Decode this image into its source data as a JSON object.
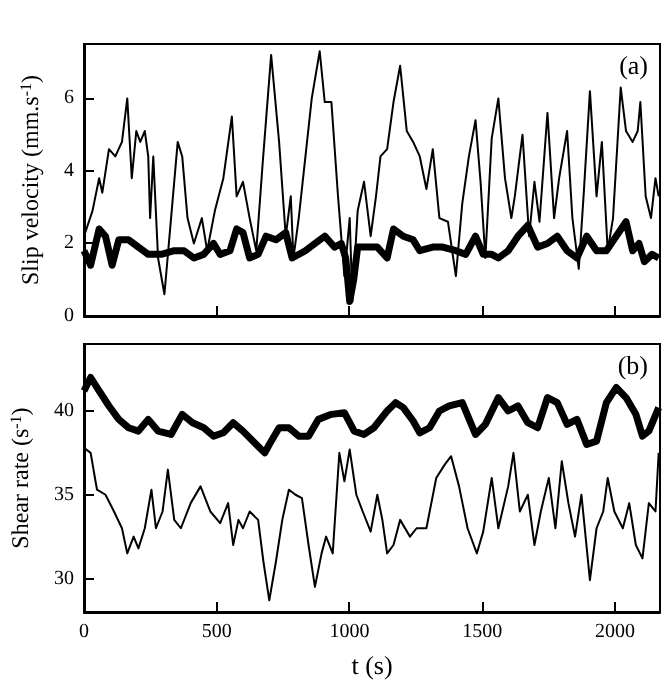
{
  "chart_data": [
    {
      "type": "line",
      "ylabel": "Slip velocity (mm.s$^{-1}$)",
      "annotations": [
        "(a)"
      ],
      "xlim": [
        0,
        2170
      ],
      "xticks": [
        0,
        500,
        1000,
        1500,
        2000
      ],
      "ylim": [
        0,
        7.5
      ],
      "yticks": [
        0,
        2,
        4,
        6
      ],
      "tick_labels": "y",
      "grid": false,
      "marker": "none",
      "line_style": "solid",
      "series": [
        {
          "color": "#000000",
          "x": [
            0,
            32,
            57,
            69,
            94,
            118,
            143,
            163,
            180,
            197,
            212,
            229,
            242,
            249,
            261,
            279,
            303,
            328,
            353,
            370,
            390,
            414,
            444,
            464,
            493,
            525,
            557,
            575,
            599,
            624,
            649,
            673,
            705,
            735,
            760,
            779,
            789,
            809,
            858,
            888,
            907,
            932,
            957,
            981,
            1001,
            1011,
            1031,
            1055,
            1080,
            1100,
            1117,
            1142,
            1166,
            1191,
            1216,
            1240,
            1265,
            1290,
            1314,
            1339,
            1371,
            1401,
            1425,
            1450,
            1475,
            1494,
            1512,
            1536,
            1561,
            1586,
            1610,
            1623,
            1652,
            1677,
            1697,
            1716,
            1746,
            1771,
            1790,
            1820,
            1840,
            1864,
            1882,
            1906,
            1931,
            1951,
            1973,
            1993,
            2022,
            2042,
            2067,
            2086,
            2096,
            2116,
            2136,
            2153,
            2165
          ],
          "values": [
            2.2,
            2.9,
            3.8,
            3.4,
            4.6,
            4.4,
            4.8,
            6.0,
            3.8,
            5.1,
            4.8,
            5.1,
            4.4,
            2.7,
            4.4,
            1.6,
            0.6,
            2.7,
            4.8,
            4.4,
            2.7,
            2.0,
            2.7,
            1.8,
            2.9,
            3.8,
            5.5,
            3.3,
            3.7,
            2.7,
            1.8,
            4.2,
            7.2,
            4.8,
            2.2,
            3.3,
            1.6,
            2.7,
            6.0,
            7.3,
            5.9,
            5.9,
            3.3,
            1.1,
            2.7,
            0.4,
            2.9,
            3.7,
            2.2,
            3.3,
            4.4,
            4.6,
            5.9,
            6.9,
            5.1,
            4.8,
            4.4,
            3.5,
            4.6,
            2.7,
            2.6,
            1.1,
            3.1,
            4.4,
            5.4,
            3.7,
            1.6,
            4.9,
            6.0,
            3.8,
            2.7,
            3.3,
            5.0,
            2.2,
            3.7,
            2.6,
            5.6,
            2.7,
            3.8,
            5.1,
            2.7,
            1.3,
            3.3,
            6.2,
            3.3,
            4.8,
            1.8,
            2.7,
            6.3,
            5.1,
            4.8,
            5.1,
            5.9,
            3.3,
            2.7,
            3.8,
            3.3
          ]
        },
        {
          "color": "#000000",
          "x": [
            0,
            25,
            57,
            81,
            106,
            131,
            168,
            205,
            242,
            291,
            340,
            377,
            414,
            451,
            488,
            513,
            550,
            575,
            599,
            624,
            656,
            686,
            723,
            760,
            784,
            834,
            870,
            907,
            944,
            969,
            986,
            1001,
            1016,
            1031,
            1068,
            1105,
            1142,
            1166,
            1203,
            1240,
            1265,
            1314,
            1351,
            1401,
            1438,
            1475,
            1504,
            1536,
            1561,
            1598,
            1635,
            1672,
            1709,
            1746,
            1783,
            1820,
            1857,
            1894,
            1931,
            1968,
            2005,
            2042,
            2067,
            2091,
            2111,
            2140,
            2165
          ],
          "values": [
            1.8,
            1.4,
            2.4,
            2.2,
            1.4,
            2.1,
            2.1,
            1.9,
            1.7,
            1.7,
            1.8,
            1.8,
            1.6,
            1.7,
            2.0,
            1.7,
            1.8,
            2.4,
            2.3,
            1.6,
            1.7,
            2.2,
            2.1,
            2.3,
            1.6,
            1.8,
            2.0,
            2.2,
            1.9,
            2.0,
            1.6,
            0.4,
            1.0,
            1.9,
            1.9,
            1.9,
            1.6,
            2.4,
            2.2,
            2.1,
            1.8,
            1.9,
            1.9,
            1.8,
            1.7,
            2.2,
            1.7,
            1.7,
            1.6,
            1.8,
            2.2,
            2.5,
            1.9,
            2.0,
            2.2,
            1.8,
            1.6,
            2.2,
            1.8,
            1.8,
            2.2,
            2.6,
            1.8,
            2.0,
            1.5,
            1.7,
            1.6
          ]
        }
      ]
    },
    {
      "type": "line",
      "xlabel": "t (s)",
      "ylabel": "Shear rate (s$^{-1}$)",
      "annotations": [
        "(b)"
      ],
      "xlim": [
        0,
        2170
      ],
      "xticks": [
        0,
        500,
        1000,
        1500,
        2000
      ],
      "ylim": [
        28,
        44
      ],
      "yticks": [
        30,
        35,
        40
      ],
      "grid": false,
      "marker": "none",
      "line_style": "solid",
      "series": [
        {
          "color": "#000000",
          "x": [
            0,
            25,
            49,
            81,
            113,
            143,
            163,
            187,
            205,
            229,
            254,
            271,
            296,
            316,
            340,
            365,
            402,
            439,
            476,
            513,
            543,
            562,
            582,
            599,
            624,
            656,
            676,
            698,
            723,
            747,
            772,
            797,
            821,
            846,
            870,
            895,
            912,
            937,
            962,
            981,
            1001,
            1026,
            1050,
            1080,
            1105,
            1124,
            1142,
            1166,
            1191,
            1228,
            1253,
            1290,
            1327,
            1359,
            1383,
            1413,
            1445,
            1480,
            1504,
            1536,
            1561,
            1598,
            1618,
            1642,
            1672,
            1697,
            1721,
            1751,
            1776,
            1800,
            1825,
            1850,
            1874,
            1906,
            1931,
            1956,
            1973,
            1998,
            2030,
            2054,
            2079,
            2104,
            2128,
            2153,
            2165
          ],
          "values": [
            37.8,
            37.5,
            35.3,
            35.0,
            34.0,
            33.0,
            31.5,
            32.5,
            31.8,
            33.0,
            35.3,
            33.0,
            34.0,
            36.5,
            33.5,
            33.0,
            34.5,
            35.5,
            34.0,
            33.3,
            34.5,
            32.0,
            33.5,
            33.0,
            34.0,
            33.5,
            31.0,
            28.7,
            31.0,
            33.5,
            35.3,
            35.0,
            34.8,
            32.0,
            29.5,
            31.5,
            32.5,
            31.5,
            37.5,
            35.8,
            37.7,
            35.0,
            34.0,
            32.8,
            35.0,
            33.5,
            31.5,
            32.0,
            33.5,
            32.5,
            33.0,
            33.0,
            36.0,
            36.8,
            37.3,
            35.5,
            33.0,
            31.5,
            32.8,
            36.0,
            33.0,
            35.5,
            37.5,
            34.0,
            35.0,
            32.0,
            34.0,
            36.0,
            33.0,
            37.0,
            34.5,
            32.5,
            35.0,
            29.9,
            33.0,
            34.0,
            36.0,
            34.0,
            33.0,
            34.5,
            32.0,
            31.2,
            34.5,
            34.0,
            37.5
          ]
        },
        {
          "color": "#000000",
          "x": [
            0,
            25,
            57,
            94,
            131,
            168,
            205,
            242,
            279,
            328,
            370,
            409,
            451,
            488,
            525,
            562,
            599,
            649,
            681,
            698,
            735,
            772,
            809,
            846,
            883,
            932,
            981,
            1018,
            1055,
            1092,
            1142,
            1174,
            1203,
            1240,
            1265,
            1302,
            1339,
            1376,
            1425,
            1475,
            1512,
            1561,
            1598,
            1635,
            1672,
            1709,
            1746,
            1783,
            1820,
            1857,
            1894,
            1931,
            1968,
            2005,
            2042,
            2079,
            2104,
            2128,
            2165
          ],
          "values": [
            41.2,
            42.0,
            41.2,
            40.3,
            39.5,
            39.0,
            38.8,
            39.5,
            38.8,
            38.6,
            39.8,
            39.3,
            39.0,
            38.5,
            38.7,
            39.3,
            38.8,
            38.0,
            37.5,
            38.0,
            39.0,
            39.0,
            38.5,
            38.5,
            39.5,
            39.8,
            39.9,
            38.8,
            38.6,
            39.0,
            40.0,
            40.5,
            40.2,
            39.4,
            38.7,
            39.0,
            40.0,
            40.3,
            40.5,
            38.6,
            39.2,
            40.8,
            40.0,
            40.3,
            39.3,
            39.0,
            40.8,
            40.5,
            39.2,
            39.5,
            38.0,
            38.2,
            40.5,
            41.4,
            40.8,
            39.8,
            38.5,
            38.8,
            40.2
          ]
        }
      ]
    }
  ]
}
